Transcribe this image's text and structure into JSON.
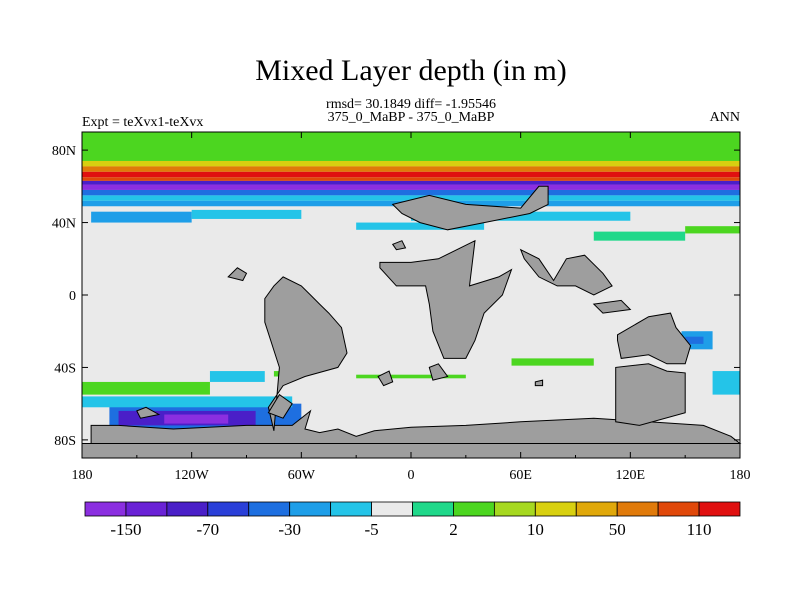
{
  "chart_data": {
    "type": "heatmap",
    "title": "Mixed Layer depth (in m)",
    "subtitle_stats": "rmsd= 30.1849 diff= -1.95546",
    "subtitle_case": "375_0_MaBP - 375_0_MaBP",
    "left_label": "Expt = teXvx1-teXvx",
    "right_label": "ANN",
    "xlim": [
      -180,
      180
    ],
    "ylim": [
      -90,
      90
    ],
    "x_ticks": [
      {
        "value": -180,
        "label": "180"
      },
      {
        "value": -120,
        "label": "120W"
      },
      {
        "value": -60,
        "label": "60W"
      },
      {
        "value": 0,
        "label": "0"
      },
      {
        "value": 60,
        "label": "60E"
      },
      {
        "value": 120,
        "label": "120E"
      },
      {
        "value": 180,
        "label": "180"
      }
    ],
    "y_ticks": [
      {
        "value": 80,
        "label": "80N"
      },
      {
        "value": 40,
        "label": "40N"
      },
      {
        "value": 0,
        "label": "0"
      },
      {
        "value": -40,
        "label": "40S"
      },
      {
        "value": -80,
        "label": "80S"
      }
    ],
    "colorbar": {
      "colors": [
        "#8b2fe0",
        "#6a22d6",
        "#4a1fc8",
        "#2a3fd8",
        "#1e6fe0",
        "#1e9ee8",
        "#24c4e8",
        "#eaeaea",
        "#20d88a",
        "#4cd620",
        "#a6d820",
        "#d8d010",
        "#e0a80a",
        "#e07a0a",
        "#e0480a",
        "#e01010"
      ],
      "label_positions": [
        1,
        3,
        5,
        7,
        9,
        11,
        13,
        15
      ],
      "labels": [
        "-150",
        "-70",
        "-30",
        "-5",
        "2",
        "10",
        "50",
        "110"
      ]
    },
    "zonal_bands": [
      {
        "lat": [
          74,
          90
        ],
        "color": "#4cd620"
      },
      {
        "lat": [
          71,
          74
        ],
        "color": "#d8d010"
      },
      {
        "lat": [
          68,
          71
        ],
        "color": "#e07a0a"
      },
      {
        "lat": [
          65,
          68
        ],
        "color": "#e01010"
      },
      {
        "lat": [
          63,
          65
        ],
        "color": "#e0480a"
      },
      {
        "lat": [
          61,
          63
        ],
        "color": "#4a1fc8"
      },
      {
        "lat": [
          58,
          61
        ],
        "color": "#8b2fe0"
      },
      {
        "lat": [
          55,
          58
        ],
        "color": "#1e6fe0"
      },
      {
        "lat": [
          52,
          55
        ],
        "color": "#24c4e8"
      },
      {
        "lat": [
          49,
          52
        ],
        "color": "#1e9ee8"
      }
    ],
    "patches": [
      {
        "lon": [
          -165,
          -60
        ],
        "lat": [
          -76,
          -60
        ],
        "color": "#1e6fe0"
      },
      {
        "lon": [
          -160,
          -85
        ],
        "lat": [
          -72,
          -64
        ],
        "color": "#4a1fc8"
      },
      {
        "lon": [
          -135,
          -100
        ],
        "lat": [
          -71,
          -66
        ],
        "color": "#8b2fe0"
      },
      {
        "lon": [
          -180,
          -65
        ],
        "lat": [
          -62,
          -56
        ],
        "color": "#24c4e8"
      },
      {
        "lon": [
          -180,
          -110
        ],
        "lat": [
          -55,
          -48
        ],
        "color": "#4cd620"
      },
      {
        "lon": [
          -110,
          -80
        ],
        "lat": [
          -48,
          -42
        ],
        "color": "#24c4e8"
      },
      {
        "lon": [
          -75,
          -60
        ],
        "lat": [
          -45,
          -42
        ],
        "color": "#4cd620"
      },
      {
        "lon": [
          -30,
          30
        ],
        "lat": [
          -46,
          -44
        ],
        "color": "#4cd620"
      },
      {
        "lon": [
          55,
          100
        ],
        "lat": [
          -39,
          -35
        ],
        "color": "#4cd620"
      },
      {
        "lon": [
          148,
          165
        ],
        "lat": [
          -30,
          -20
        ],
        "color": "#1e9ee8"
      },
      {
        "lon": [
          150,
          160
        ],
        "lat": [
          -27,
          -23
        ],
        "color": "#1e6fe0"
      },
      {
        "lon": [
          165,
          180
        ],
        "lat": [
          -55,
          -42
        ],
        "color": "#24c4e8"
      },
      {
        "lon": [
          100,
          150
        ],
        "lat": [
          30,
          35
        ],
        "color": "#20d88a"
      },
      {
        "lon": [
          150,
          180
        ],
        "lat": [
          34,
          38
        ],
        "color": "#4cd620"
      },
      {
        "lon": [
          -175,
          -120
        ],
        "lat": [
          40,
          46
        ],
        "color": "#1e9ee8"
      },
      {
        "lon": [
          -120,
          -60
        ],
        "lat": [
          42,
          47
        ],
        "color": "#24c4e8"
      },
      {
        "lon": [
          0,
          120
        ],
        "lat": [
          41,
          46
        ],
        "color": "#24c4e8"
      },
      {
        "lon": [
          -30,
          40
        ],
        "lat": [
          36,
          40
        ],
        "color": "#24c4e8"
      }
    ],
    "land": [
      [
        [
          -180,
          -90
        ],
        [
          180,
          -90
        ],
        [
          180,
          -82
        ],
        [
          -180,
          -82
        ]
      ],
      [
        [
          -175,
          -82
        ],
        [
          -175,
          -72
        ],
        [
          -160,
          -72
        ],
        [
          -130,
          -74
        ],
        [
          -90,
          -72
        ],
        [
          -65,
          -72
        ],
        [
          -55,
          -64
        ],
        [
          -58,
          -74
        ],
        [
          -50,
          -76
        ],
        [
          -40,
          -74
        ],
        [
          -30,
          -78
        ],
        [
          -20,
          -75
        ],
        [
          0,
          -73
        ],
        [
          30,
          -72
        ],
        [
          60,
          -70
        ],
        [
          100,
          -68
        ],
        [
          130,
          -70
        ],
        [
          160,
          -72
        ],
        [
          175,
          -78
        ],
        [
          180,
          -82
        ],
        [
          -180,
          -82
        ]
      ],
      [
        [
          -75,
          -75
        ],
        [
          -78,
          -62
        ],
        [
          -70,
          -50
        ],
        [
          -58,
          -45
        ],
        [
          -40,
          -40
        ],
        [
          -35,
          -32
        ],
        [
          -38,
          -18
        ],
        [
          -45,
          -10
        ],
        [
          -50,
          -5
        ],
        [
          -55,
          0
        ],
        [
          -60,
          5
        ],
        [
          -70,
          10
        ],
        [
          -75,
          5
        ],
        [
          -80,
          -2
        ],
        [
          -80,
          -15
        ],
        [
          -72,
          -40
        ],
        [
          -75,
          -75
        ]
      ],
      [
        [
          -17,
          18
        ],
        [
          0,
          18
        ],
        [
          15,
          20
        ],
        [
          35,
          30
        ],
        [
          32,
          5
        ],
        [
          48,
          10
        ],
        [
          55,
          14
        ],
        [
          50,
          0
        ],
        [
          40,
          -10
        ],
        [
          35,
          -25
        ],
        [
          30,
          -35
        ],
        [
          18,
          -35
        ],
        [
          12,
          -20
        ],
        [
          10,
          -5
        ],
        [
          8,
          5
        ],
        [
          -8,
          5
        ],
        [
          -17,
          15
        ]
      ],
      [
        [
          -10,
          50
        ],
        [
          10,
          55
        ],
        [
          30,
          50
        ],
        [
          60,
          48
        ],
        [
          70,
          60
        ],
        [
          75,
          60
        ],
        [
          75,
          50
        ],
        [
          65,
          45
        ],
        [
          40,
          40
        ],
        [
          20,
          36
        ],
        [
          5,
          40
        ],
        [
          -5,
          45
        ]
      ],
      [
        [
          60,
          25
        ],
        [
          70,
          20
        ],
        [
          78,
          8
        ],
        [
          85,
          20
        ],
        [
          95,
          22
        ],
        [
          105,
          12
        ],
        [
          110,
          5
        ],
        [
          100,
          0
        ],
        [
          90,
          5
        ],
        [
          80,
          5
        ],
        [
          70,
          10
        ],
        [
          62,
          20
        ]
      ],
      [
        [
          100,
          -5
        ],
        [
          115,
          -3
        ],
        [
          120,
          -8
        ],
        [
          105,
          -10
        ]
      ],
      [
        [
          113,
          -22
        ],
        [
          130,
          -12
        ],
        [
          142,
          -10
        ],
        [
          145,
          -18
        ],
        [
          153,
          -28
        ],
        [
          150,
          -38
        ],
        [
          140,
          -38
        ],
        [
          130,
          -33
        ],
        [
          115,
          -35
        ],
        [
          113,
          -25
        ]
      ],
      [
        [
          112,
          -45
        ],
        [
          112,
          -40
        ],
        [
          130,
          -38
        ],
        [
          140,
          -42
        ],
        [
          150,
          -43
        ],
        [
          150,
          -65
        ],
        [
          125,
          -72
        ],
        [
          112,
          -70
        ]
      ],
      [
        [
          -18,
          -45
        ],
        [
          -12,
          -42
        ],
        [
          -10,
          -48
        ],
        [
          -15,
          -50
        ]
      ],
      [
        [
          10,
          -40
        ],
        [
          15,
          -38
        ],
        [
          20,
          -45
        ],
        [
          12,
          -47
        ]
      ],
      [
        [
          -78,
          -65
        ],
        [
          -72,
          -55
        ],
        [
          -65,
          -60
        ],
        [
          -70,
          -68
        ]
      ],
      [
        [
          -150,
          -64
        ],
        [
          -145,
          -62
        ],
        [
          -138,
          -66
        ],
        [
          -148,
          -68
        ]
      ],
      [
        [
          68,
          -48
        ],
        [
          72,
          -47
        ],
        [
          72,
          -50
        ],
        [
          68,
          -50
        ]
      ],
      [
        [
          -100,
          10
        ],
        [
          -95,
          15
        ],
        [
          -90,
          12
        ],
        [
          -92,
          8
        ]
      ],
      [
        [
          -10,
          28
        ],
        [
          -5,
          30
        ],
        [
          -3,
          26
        ],
        [
          -8,
          25
        ]
      ]
    ]
  }
}
